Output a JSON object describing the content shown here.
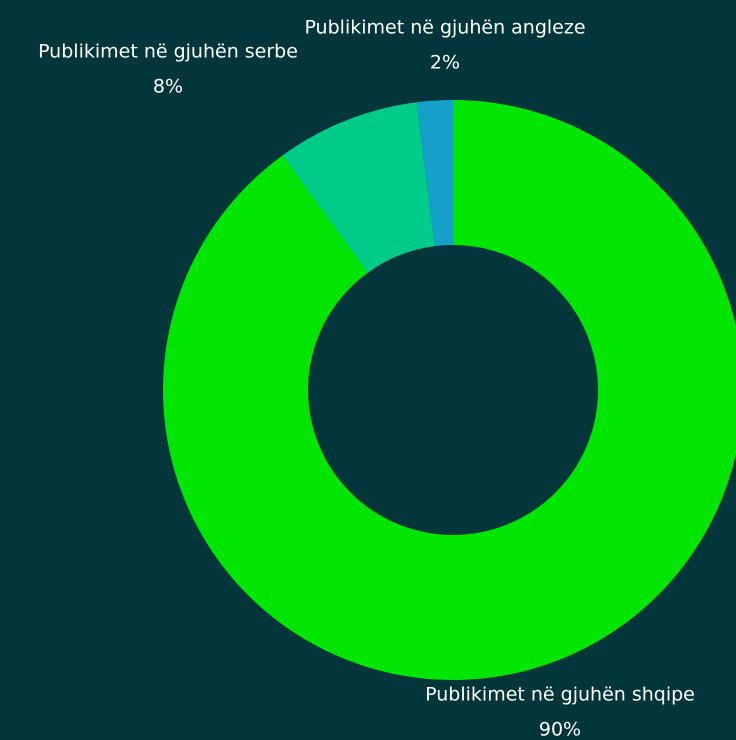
{
  "chart_data": {
    "type": "pie",
    "categories": [
      "Publikimet në gjuhën shqipe",
      "Publikimet në gjuhën serbe",
      "Publikimet në gjuhën angleze"
    ],
    "values": [
      90,
      8,
      2
    ],
    "value_labels": [
      "90%",
      "8%",
      "2%"
    ],
    "colors": [
      "#00e600",
      "#00cc8a",
      "#14a0c8"
    ]
  }
}
